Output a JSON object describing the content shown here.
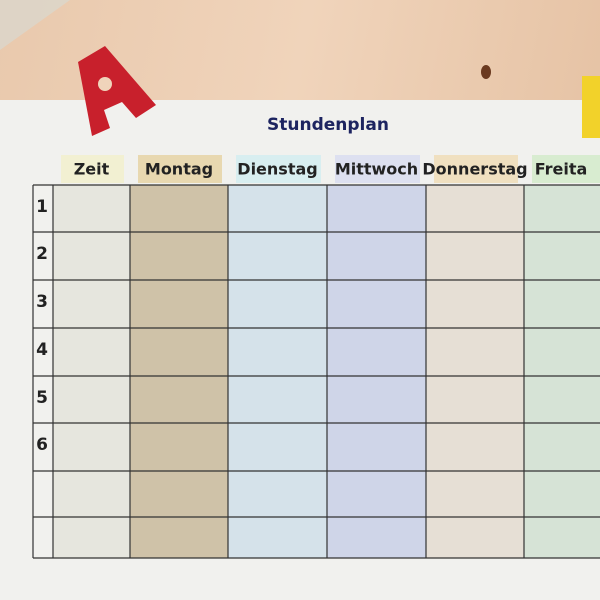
{
  "title": "Stundenplan",
  "columns": [
    "Zeit",
    "Montag",
    "Dienstag",
    "Mittwoch",
    "Donnerstag",
    "Freita"
  ],
  "rows": [
    1,
    2,
    3,
    4,
    5,
    6
  ],
  "letter": "A"
}
